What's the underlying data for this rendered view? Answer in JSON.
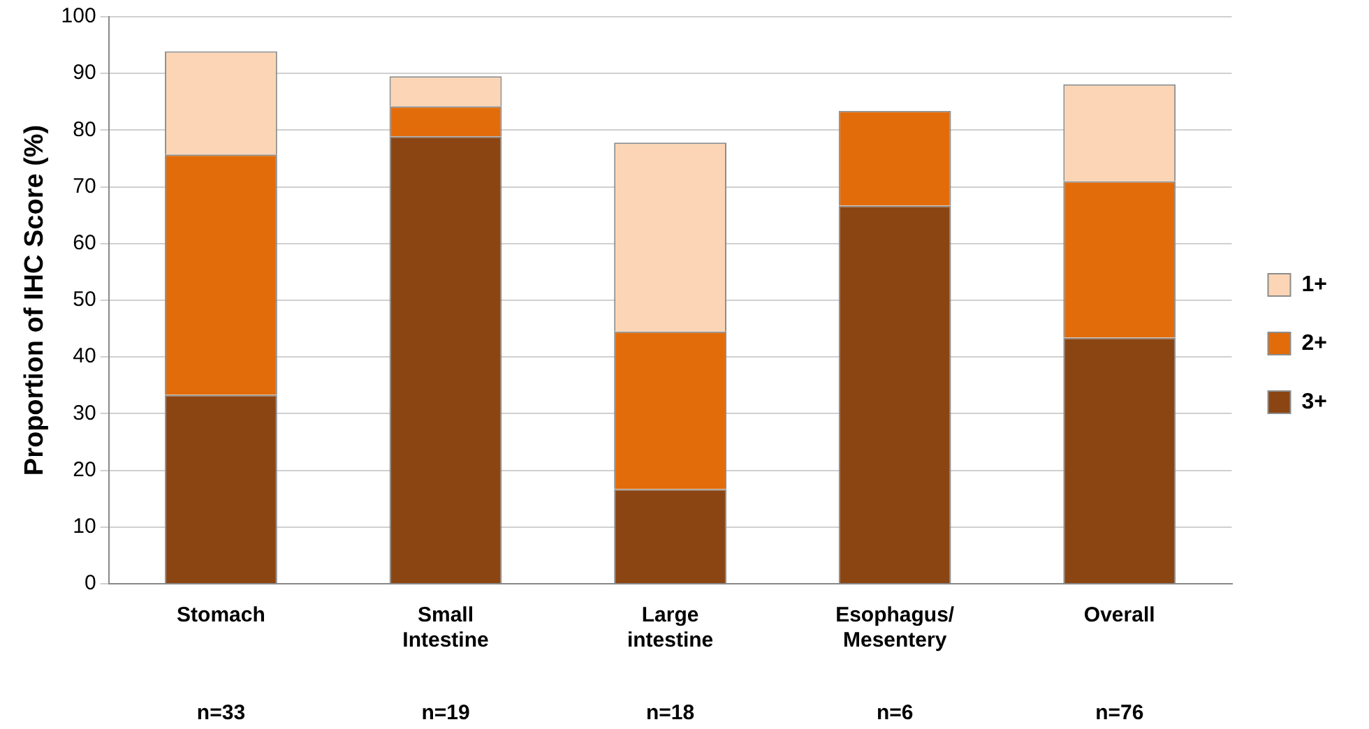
{
  "chart_data": {
    "type": "bar",
    "stacked": true,
    "ylabel": "Proportion of IHC Score (%)",
    "categories": [
      "Stomach",
      "Small\nIntestine",
      "Large\nintestine",
      "Esophagus/\nMesentery",
      "Overall"
    ],
    "series": [
      {
        "name": "3+",
        "color": "#8b4513",
        "values": [
          33.3,
          78.9,
          16.7,
          66.7,
          43.4
        ]
      },
      {
        "name": "2+",
        "color": "#e36c0a",
        "values": [
          42.4,
          5.3,
          27.8,
          16.7,
          27.6
        ]
      },
      {
        "name": "1+",
        "color": "#fbd5b5",
        "values": [
          18.2,
          5.3,
          33.3,
          null,
          17.1
        ]
      }
    ],
    "ylim": [
      0,
      100
    ],
    "yticks": [
      0,
      10,
      20,
      30,
      40,
      50,
      60,
      70,
      80,
      90,
      100
    ],
    "grid": "y",
    "legend": "right",
    "annotations": [
      "n=33",
      "n=19",
      "n=18",
      "n=6",
      "n=76"
    ]
  }
}
